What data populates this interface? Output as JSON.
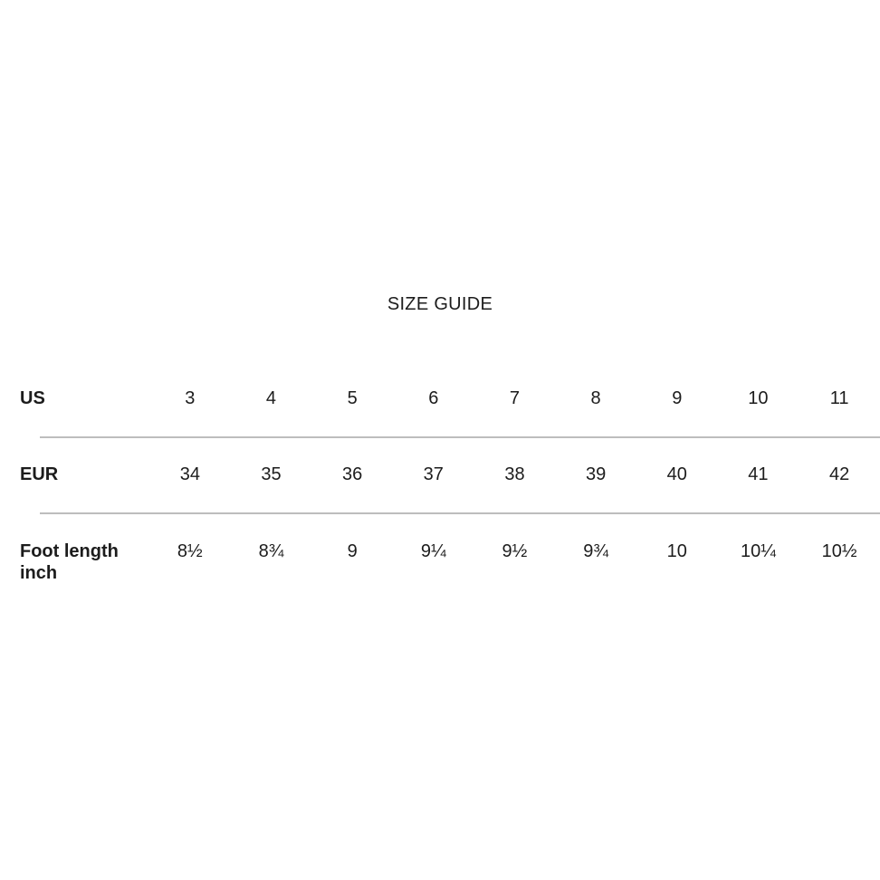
{
  "page": {
    "title": "SIZE GUIDE"
  },
  "size_table": {
    "rows": [
      {
        "label": "US",
        "values": [
          "3",
          "4",
          "5",
          "6",
          "7",
          "8",
          "9",
          "10",
          "11"
        ]
      },
      {
        "label": "EUR",
        "values": [
          "34",
          "35",
          "36",
          "37",
          "38",
          "39",
          "40",
          "41",
          "42"
        ]
      },
      {
        "label": "Foot length inch",
        "values": [
          "8½",
          "8¾",
          "9",
          "9¼",
          "9½",
          "9¾",
          "10",
          "10¼",
          "10½"
        ]
      }
    ]
  },
  "colors": {
    "text": "#1c1c1c",
    "divider": "#bdbdbd",
    "background": "#ffffff"
  }
}
